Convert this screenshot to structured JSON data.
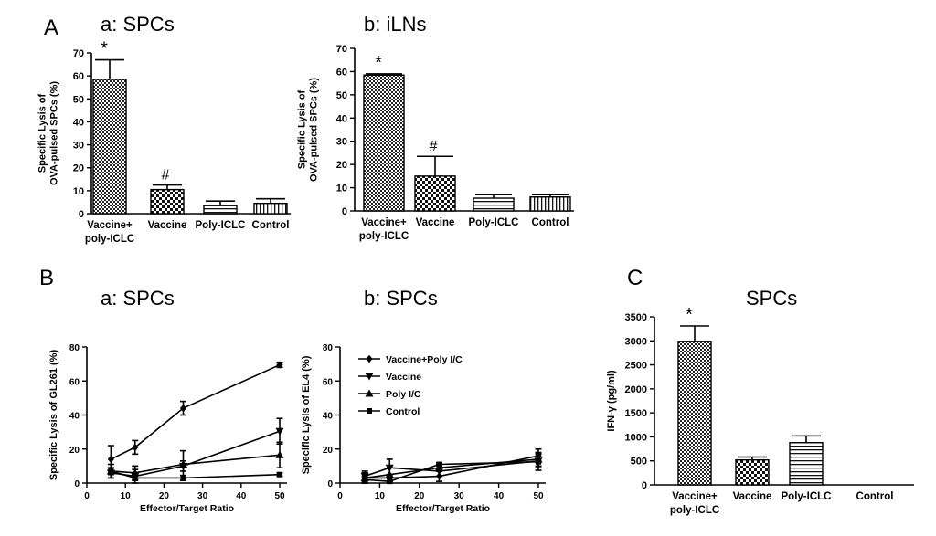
{
  "panels": {
    "A": "A",
    "B": "B",
    "C": "C"
  },
  "chart_data": [
    {
      "id": "Aa",
      "type": "bar",
      "title": "a: SPCs",
      "ylabel": "Specific Lysis of OVA-pulsed SPCs (%)",
      "ylabel_lines": [
        "Specific Lysis of",
        "OVA-pulsed SPCs (%)"
      ],
      "categories": [
        [
          "Vaccine+",
          "poly-ICLC"
        ],
        [
          "Vaccine"
        ],
        [
          "Poly-ICLC"
        ],
        [
          "Control"
        ]
      ],
      "values": [
        58.5,
        10.5,
        3.5,
        4.5
      ],
      "errors": [
        8.5,
        2.0,
        2.0,
        2.0
      ],
      "annotations": [
        "*",
        "#",
        "",
        ""
      ],
      "patterns": [
        "dense-check",
        "check",
        "hstripe",
        "vstripe"
      ],
      "ylim": [
        0,
        70
      ],
      "yticks": [
        0,
        10,
        20,
        30,
        40,
        50,
        60,
        70
      ]
    },
    {
      "id": "Ab",
      "type": "bar",
      "title": "b: iLNs",
      "ylabel": "Specific Lysis of OVA-pulsed SPCs (%)",
      "ylabel_lines": [
        "Specific Lysis of",
        "OVA-pulsed SPCs (%)"
      ],
      "categories": [
        [
          "Vaccine+",
          "poly-ICLC"
        ],
        [
          "Vaccine"
        ],
        [
          "Poly-ICLC"
        ],
        [
          "Control"
        ]
      ],
      "values": [
        58.5,
        15.0,
        5.5,
        6.0
      ],
      "errors": [
        0.5,
        8.5,
        1.5,
        1.0
      ],
      "annotations": [
        "*",
        "#",
        "",
        ""
      ],
      "patterns": [
        "dense-check",
        "check",
        "hstripe",
        "vstripe"
      ],
      "ylim": [
        0,
        70
      ],
      "yticks": [
        0,
        10,
        20,
        30,
        40,
        50,
        60,
        70
      ]
    },
    {
      "id": "Ba",
      "type": "line",
      "title": "a: SPCs",
      "xlabel": "Effector/Target Ratio",
      "ylabel": "Specific Lysis of GL261 (%)",
      "x": [
        6.25,
        12.5,
        25,
        50
      ],
      "xlim": [
        0,
        50
      ],
      "xticks": [
        0,
        10,
        20,
        30,
        40,
        50
      ],
      "ylim": [
        0,
        80
      ],
      "yticks": [
        0,
        20,
        40,
        60,
        80
      ],
      "series": [
        {
          "name": "Vaccine+Poly I/C",
          "marker": "diamond",
          "values": [
            14,
            21,
            44,
            69.5
          ],
          "errors": [
            8,
            4,
            4,
            1.5
          ]
        },
        {
          "name": "Vaccine",
          "marker": "tri-down",
          "values": [
            6,
            4,
            10,
            30.5
          ],
          "errors": [
            3,
            4,
            3,
            7.5
          ]
        },
        {
          "name": "Poly I/C",
          "marker": "tri-up",
          "values": [
            7,
            6,
            11,
            16.5
          ],
          "errors": [
            4,
            4,
            8,
            7.5
          ]
        },
        {
          "name": "Control",
          "marker": "square",
          "values": [
            7,
            3,
            3,
            5
          ],
          "errors": [
            2,
            1.5,
            1.5,
            1
          ]
        }
      ]
    },
    {
      "id": "Bb",
      "type": "line",
      "title": "b: SPCs",
      "xlabel": "Effector/Target Ratio",
      "ylabel": "Specific Lysis of EL4  (%)",
      "x": [
        6.25,
        12.5,
        25,
        50
      ],
      "xlim": [
        0,
        50
      ],
      "xticks": [
        0,
        10,
        20,
        30,
        40,
        50
      ],
      "ylim": [
        0,
        80
      ],
      "yticks": [
        0,
        20,
        40,
        60,
        80
      ],
      "legend_position": "top-left",
      "series": [
        {
          "name": "Vaccine+Poly I/C",
          "marker": "diamond",
          "values": [
            3,
            3,
            4,
            16
          ],
          "errors": [
            3,
            2,
            3,
            4
          ]
        },
        {
          "name": "Vaccine",
          "marker": "tri-down",
          "values": [
            4,
            9,
            7,
            13
          ],
          "errors": [
            3,
            5,
            3,
            4
          ]
        },
        {
          "name": "Poly I/C",
          "marker": "tri-up",
          "values": [
            3,
            5,
            9,
            14
          ],
          "errors": [
            3,
            4,
            2,
            4
          ]
        },
        {
          "name": "Control",
          "marker": "square",
          "values": [
            2,
            1,
            11,
            12.5
          ],
          "errors": [
            2,
            2,
            1,
            5
          ]
        }
      ]
    },
    {
      "id": "C",
      "type": "bar",
      "title": "SPCs",
      "ylabel": "IFN-γ (pg/ml)",
      "categories": [
        [
          "Vaccine+",
          "poly-ICLC"
        ],
        [
          "Vaccine"
        ],
        [
          "Poly-ICLC"
        ],
        [
          "Control"
        ]
      ],
      "values": [
        2990,
        520,
        880,
        0
      ],
      "errors": [
        320,
        60,
        140,
        0
      ],
      "annotations": [
        "*",
        "",
        "",
        ""
      ],
      "patterns": [
        "dense-check",
        "check",
        "hstripe",
        "vstripe"
      ],
      "ylim": [
        0,
        3500
      ],
      "yticks": [
        0,
        500,
        1000,
        1500,
        2000,
        2500,
        3000,
        3500
      ]
    }
  ]
}
